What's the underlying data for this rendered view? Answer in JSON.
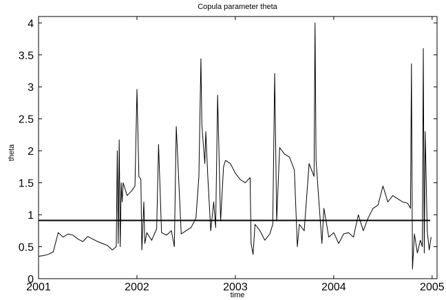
{
  "chart_data": {
    "type": "line",
    "title": "Copula parameter theta",
    "xlabel": "time",
    "ylabel": "theta",
    "xlim": [
      2001.0,
      2005.05
    ],
    "ylim": [
      0,
      4.1
    ],
    "xticks": [
      2001,
      2002,
      2003,
      2004,
      2005
    ],
    "xtick_labels": [
      "2001",
      "2002",
      "2003",
      "2004",
      "2005"
    ],
    "yticks": [
      0,
      0.5,
      1,
      1.5,
      2,
      2.5,
      3,
      3.5,
      4
    ],
    "ytick_labels": [
      "0",
      "0.5",
      "1",
      "1.5",
      "2",
      "2.5",
      "3",
      "3.5",
      "4"
    ],
    "grid": false,
    "series": [
      {
        "role": "theta estimate",
        "color": "#000000",
        "x": [
          2001.0,
          2001.05,
          2001.1,
          2001.15,
          2001.2,
          2001.25,
          2001.3,
          2001.35,
          2001.4,
          2001.45,
          2001.5,
          2001.55,
          2001.6,
          2001.65,
          2001.7,
          2001.75,
          2001.79,
          2001.8,
          2001.81,
          2001.82,
          2001.83,
          2001.84,
          2001.85,
          2001.86,
          2001.9,
          2001.95,
          2001.98,
          2002.0,
          2002.02,
          2002.04,
          2002.05,
          2002.07,
          2002.08,
          2002.1,
          2002.15,
          2002.2,
          2002.22,
          2002.25,
          2002.3,
          2002.35,
          2002.38,
          2002.4,
          2002.45,
          2002.5,
          2002.55,
          2002.6,
          2002.63,
          2002.65,
          2002.66,
          2002.67,
          2002.69,
          2002.7,
          2002.72,
          2002.75,
          2002.78,
          2002.8,
          2002.82,
          2002.85,
          2002.88,
          2002.9,
          2002.95,
          2003.0,
          2003.05,
          2003.1,
          2003.15,
          2003.16,
          2003.18,
          2003.2,
          2003.25,
          2003.3,
          2003.35,
          2003.38,
          2003.4,
          2003.42,
          2003.45,
          2003.5,
          2003.55,
          2003.6,
          2003.63,
          2003.65,
          2003.7,
          2003.75,
          2003.8,
          2003.81,
          2003.82,
          2003.85,
          2003.88,
          2003.9,
          2003.95,
          2004.0,
          2004.05,
          2004.1,
          2004.15,
          2004.2,
          2004.25,
          2004.3,
          2004.35,
          2004.4,
          2004.45,
          2004.5,
          2004.55,
          2004.6,
          2004.65,
          2004.7,
          2004.75,
          2004.78,
          2004.79,
          2004.8,
          2004.82,
          2004.85,
          2004.88,
          2004.9,
          2004.91,
          2004.92,
          2004.93,
          2004.95,
          2004.97,
          2004.99
        ],
        "y": [
          0.35,
          0.36,
          0.38,
          0.42,
          0.72,
          0.65,
          0.7,
          0.68,
          0.62,
          0.58,
          0.66,
          0.62,
          0.58,
          0.55,
          0.52,
          0.45,
          0.5,
          2.0,
          0.55,
          2.17,
          0.5,
          1.5,
          1.2,
          1.5,
          1.3,
          1.38,
          1.45,
          2.96,
          1.6,
          1.55,
          0.45,
          1.2,
          0.55,
          0.72,
          0.6,
          0.78,
          2.1,
          0.72,
          0.68,
          0.75,
          0.5,
          2.38,
          0.7,
          0.75,
          0.8,
          0.95,
          1.6,
          3.44,
          2.4,
          2.2,
          1.8,
          2.3,
          1.6,
          0.75,
          1.2,
          0.8,
          2.87,
          0.9,
          1.75,
          1.85,
          1.8,
          1.65,
          1.55,
          1.5,
          1.58,
          0.55,
          0.38,
          0.85,
          0.75,
          0.6,
          0.7,
          0.85,
          3.21,
          0.9,
          2.05,
          1.95,
          1.9,
          1.7,
          0.5,
          0.85,
          0.75,
          1.8,
          1.6,
          4.0,
          1.85,
          1.2,
          0.55,
          1.1,
          0.65,
          0.72,
          0.55,
          0.7,
          0.72,
          0.65,
          1.0,
          0.75,
          0.95,
          1.1,
          1.15,
          1.45,
          1.2,
          1.3,
          1.25,
          1.2,
          1.18,
          1.1,
          3.36,
          0.15,
          0.7,
          0.4,
          0.6,
          0.5,
          3.6,
          0.4,
          2.3,
          0.75,
          0.45,
          0.65
        ]
      },
      {
        "role": "reference level",
        "color": "#000000",
        "x": [
          2001.0,
          2004.98
        ],
        "y": [
          0.91,
          0.91
        ]
      }
    ]
  }
}
